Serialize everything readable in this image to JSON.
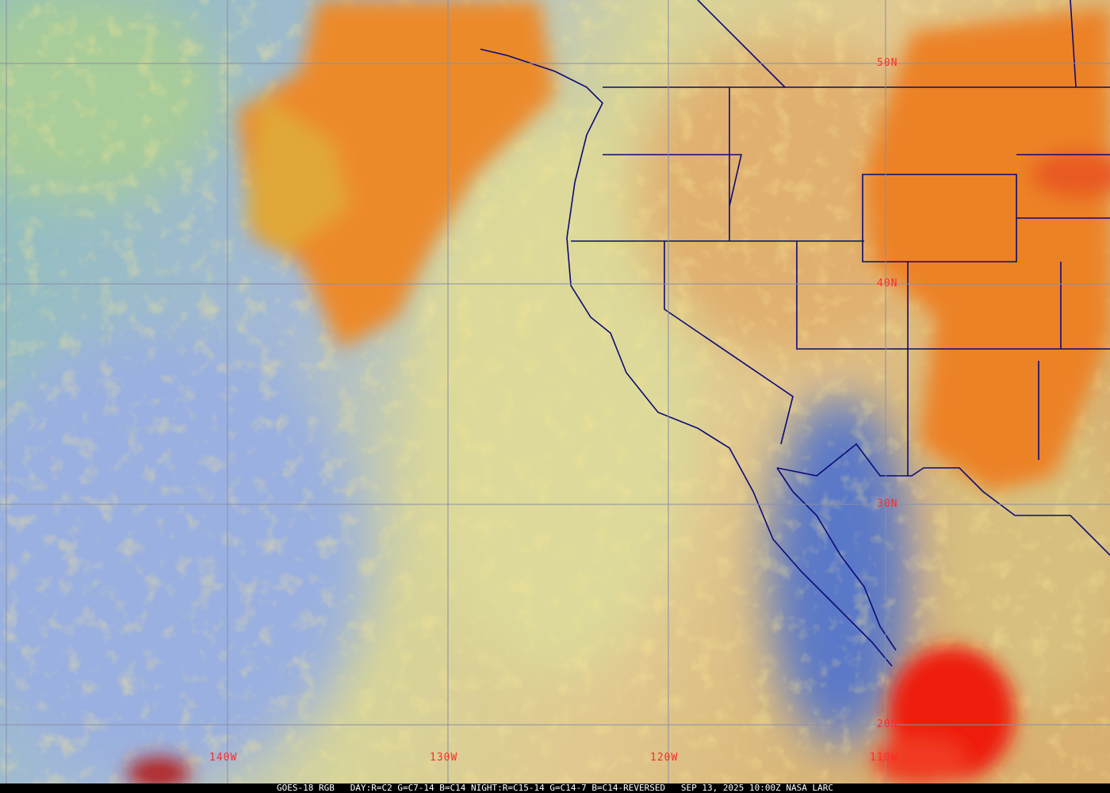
{
  "caption": "GOES-18 RGB   DAY:R=C2 G=C7-14 B=C14 NIGHT:R=C15-14 G=C14-7 B=C14-REVERSED   SEP 13, 2025 10:00Z NASA LARC",
  "grid_labels": {
    "lat_50": "50N",
    "lat_40": "40N",
    "lat_30": "30N",
    "lat_20": "20N",
    "lon_140": "140W",
    "lon_130": "130W",
    "lon_120": "120W",
    "lon_110": "110W"
  },
  "colors": {
    "grid": "#8a8fa8",
    "grid_label": "#ff2a2a",
    "borders": "#0a0a78",
    "ocean_clear": "#9db4d8",
    "cloud_orange": "#e8902e",
    "storm_red": "#e81010"
  }
}
